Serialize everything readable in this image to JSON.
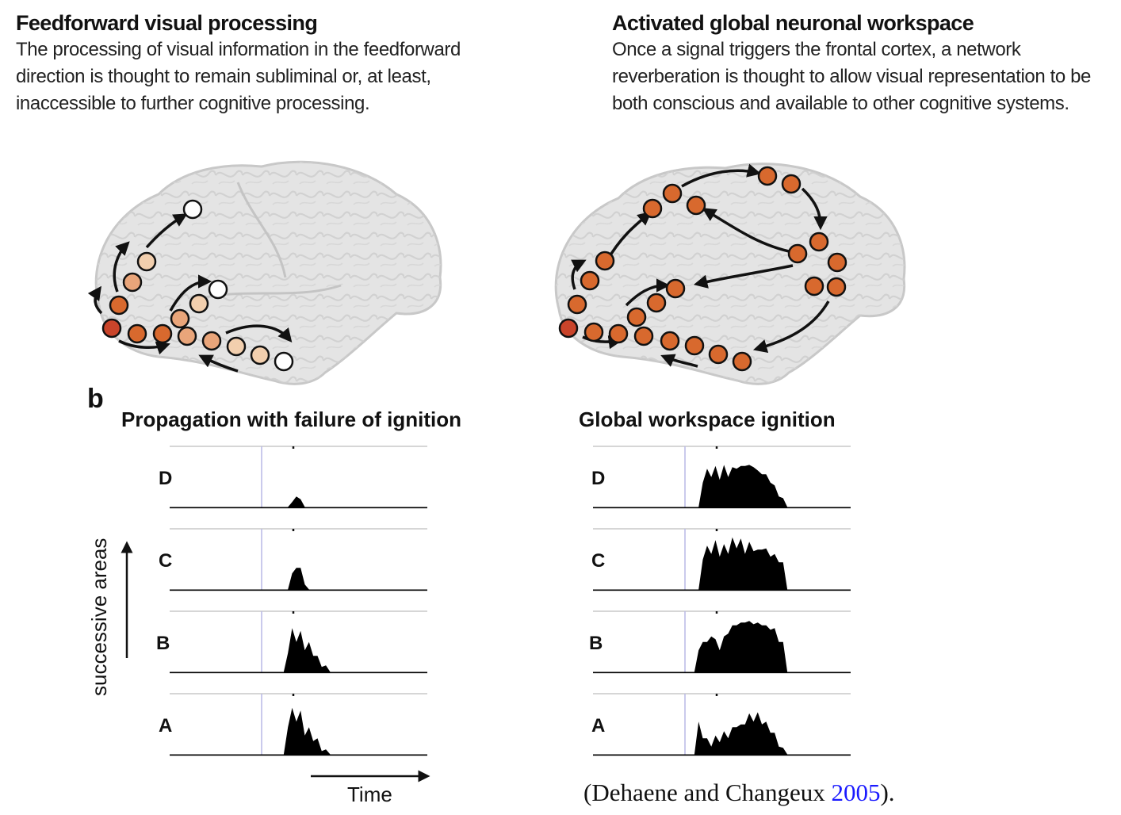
{
  "panels": {
    "left": {
      "title": "Feedforward visual processing",
      "description_lines": [
        "The processing of visual information in the feedforward",
        "direction is thought to remain subliminal or, at least,",
        "inaccessible to further cognitive processing."
      ]
    },
    "right": {
      "title": "Activated global neuronal workspace",
      "description_lines": [
        "Once a signal triggers the frontal cortex, a network",
        "reverberation is thought to allow visual representation to be",
        "both conscious and available to other cognitive systems."
      ]
    }
  },
  "panel_b": {
    "letter": "b",
    "y_axis_label": "successive areas",
    "x_axis_label": "Time"
  },
  "chart_data": [
    {
      "type": "area",
      "title": "Propagation with failure of ignition",
      "rows": [
        {
          "label": "D",
          "activity": [
            0,
            0,
            0,
            0,
            0,
            0,
            0,
            0,
            0,
            0,
            0,
            0,
            0,
            0,
            0,
            0,
            0,
            0,
            0,
            0,
            0,
            0,
            0,
            0,
            0,
            0,
            0,
            0,
            0,
            0.05,
            0.25,
            0.1,
            0,
            0,
            0,
            0,
            0,
            0,
            0,
            0,
            0,
            0,
            0,
            0,
            0,
            0,
            0,
            0,
            0,
            0,
            0,
            0,
            0,
            0,
            0,
            0,
            0,
            0,
            0,
            0,
            0,
            0
          ]
        },
        {
          "label": "C",
          "activity": [
            0,
            0,
            0,
            0,
            0,
            0,
            0,
            0,
            0,
            0,
            0,
            0,
            0,
            0,
            0,
            0,
            0,
            0,
            0,
            0,
            0,
            0,
            0,
            0,
            0,
            0,
            0,
            0,
            0,
            0.25,
            0.45,
            0.35,
            0.15,
            0,
            0,
            0,
            0,
            0,
            0,
            0,
            0,
            0,
            0,
            0,
            0,
            0,
            0,
            0,
            0,
            0,
            0,
            0,
            0,
            0,
            0,
            0,
            0,
            0,
            0,
            0,
            0,
            0
          ]
        },
        {
          "label": "B",
          "activity": [
            0,
            0,
            0,
            0,
            0,
            0,
            0,
            0,
            0,
            0,
            0,
            0,
            0,
            0,
            0,
            0,
            0,
            0,
            0,
            0,
            0,
            0,
            0,
            0,
            0,
            0,
            0,
            0,
            0.4,
            0.75,
            0.6,
            0.7,
            0.45,
            0.5,
            0.35,
            0.25,
            0.15,
            0.08,
            0,
            0,
            0,
            0,
            0,
            0,
            0,
            0,
            0,
            0,
            0,
            0,
            0,
            0,
            0,
            0,
            0,
            0,
            0,
            0,
            0,
            0,
            0,
            0
          ]
        },
        {
          "label": "A",
          "activity": [
            0,
            0,
            0,
            0,
            0,
            0,
            0,
            0,
            0,
            0,
            0,
            0,
            0,
            0,
            0,
            0,
            0,
            0,
            0,
            0,
            0,
            0,
            0,
            0,
            0,
            0,
            0,
            0,
            0.55,
            0.8,
            0.65,
            0.75,
            0.4,
            0.45,
            0.3,
            0.25,
            0.12,
            0.05,
            0,
            0,
            0,
            0,
            0,
            0,
            0,
            0,
            0,
            0,
            0,
            0,
            0,
            0,
            0,
            0,
            0,
            0,
            0,
            0,
            0,
            0,
            0,
            0
          ]
        }
      ]
    },
    {
      "type": "area",
      "title": "Global workspace ignition",
      "rows": [
        {
          "label": "D",
          "activity": [
            0,
            0,
            0,
            0,
            0,
            0,
            0,
            0,
            0,
            0,
            0,
            0,
            0,
            0,
            0,
            0,
            0,
            0,
            0,
            0,
            0,
            0,
            0,
            0,
            0,
            0,
            0.5,
            0.65,
            0.6,
            0.7,
            0.55,
            0.72,
            0.6,
            0.68,
            0.75,
            0.7,
            0.8,
            0.72,
            0.78,
            0.62,
            0.65,
            0.55,
            0.5,
            0.35,
            0.25,
            0.12,
            0,
            0,
            0,
            0,
            0,
            0,
            0,
            0,
            0,
            0,
            0,
            0,
            0,
            0,
            0,
            0
          ]
        },
        {
          "label": "C",
          "activity": [
            0,
            0,
            0,
            0,
            0,
            0,
            0,
            0,
            0,
            0,
            0,
            0,
            0,
            0,
            0,
            0,
            0,
            0,
            0,
            0,
            0,
            0,
            0,
            0,
            0,
            0,
            0.6,
            0.75,
            0.7,
            0.85,
            0.65,
            0.78,
            0.7,
            0.9,
            0.8,
            0.88,
            0.7,
            0.82,
            0.75,
            0.68,
            0.78,
            0.7,
            0.65,
            0.6,
            0.55,
            0.45,
            0,
            0,
            0,
            0,
            0,
            0,
            0,
            0,
            0,
            0,
            0,
            0,
            0,
            0,
            0,
            0
          ]
        },
        {
          "label": "B",
          "activity": [
            0,
            0,
            0,
            0,
            0,
            0,
            0,
            0,
            0,
            0,
            0,
            0,
            0,
            0,
            0,
            0,
            0,
            0,
            0,
            0,
            0,
            0,
            0,
            0,
            0,
            0.35,
            0.6,
            0.5,
            0.7,
            0.55,
            0.45,
            0.6,
            0.75,
            0.8,
            0.9,
            0.85,
            0.95,
            0.88,
            0.92,
            0.85,
            0.9,
            0.8,
            0.82,
            0.75,
            0.6,
            0.5,
            0,
            0,
            0,
            0,
            0,
            0,
            0,
            0,
            0,
            0,
            0,
            0,
            0,
            0,
            0,
            0
          ]
        },
        {
          "label": "A",
          "activity": [
            0,
            0,
            0,
            0,
            0,
            0,
            0,
            0,
            0,
            0,
            0,
            0,
            0,
            0,
            0,
            0,
            0,
            0,
            0,
            0,
            0,
            0,
            0,
            0,
            0,
            0.55,
            0.35,
            0.25,
            0.2,
            0.3,
            0.28,
            0.38,
            0.35,
            0.45,
            0.55,
            0.5,
            0.6,
            0.7,
            0.65,
            0.72,
            0.6,
            0.55,
            0.45,
            0.35,
            0.2,
            0.08,
            0,
            0,
            0,
            0,
            0,
            0,
            0,
            0,
            0,
            0,
            0,
            0,
            0,
            0,
            0,
            0
          ]
        }
      ]
    }
  ],
  "citation": {
    "prefix": "(Dehaene and Changeux ",
    "year": "2005",
    "suffix": ")."
  },
  "colors": {
    "node_dark": "#c9442a",
    "node_orange": "#d8692e",
    "node_light": "#e9a57a",
    "node_pale": "#f2cfae",
    "node_white": "#ffffff",
    "brain_fill": "#e4e4e4",
    "trace": "#000000",
    "stim_line": "#b9b9e6"
  }
}
